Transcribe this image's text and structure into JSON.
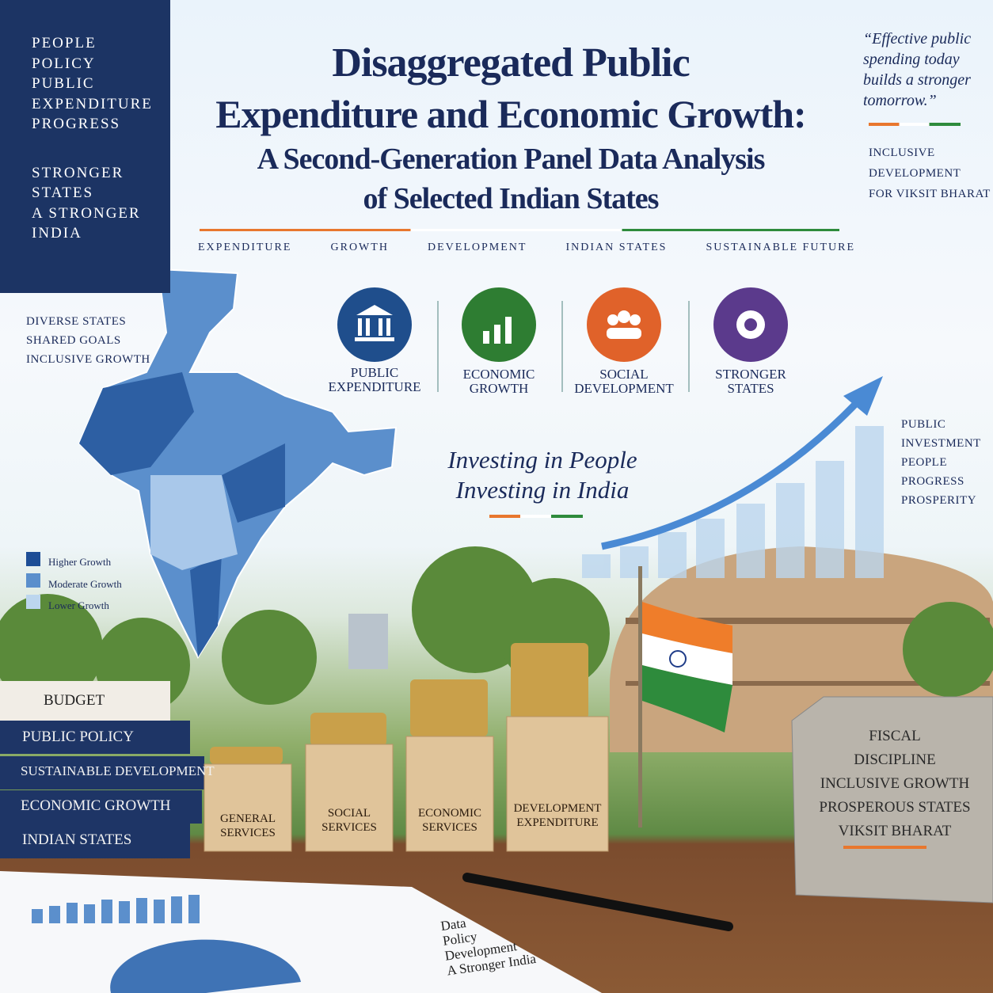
{
  "sidebar": {
    "top": [
      "PEOPLE",
      "POLICY",
      "PUBLIC",
      "EXPENDITURE",
      "PROGRESS"
    ],
    "bottom": [
      "STRONGER",
      "STATES",
      "A STRONGER",
      "INDIA"
    ]
  },
  "title": [
    "Disaggregated Public",
    "Expenditure and Economic Growth:",
    "A Second-Generation Panel Data Analysis",
    "of Selected Indian States"
  ],
  "keywords": [
    "EXPENDITURE",
    "GROWTH",
    "DEVELOPMENT",
    "INDIAN STATES",
    "SUSTAINABLE FUTURE"
  ],
  "quote": [
    "“Effective public",
    "spending today",
    "builds a stronger",
    "tomorrow.”"
  ],
  "quote_tags": [
    "INCLUSIVE",
    "DEVELOPMENT",
    "FOR VIKSIT BHARAT"
  ],
  "map_notes": [
    "DIVERSE STATES",
    "SHARED GOALS",
    "INCLUSIVE GROWTH"
  ],
  "legend": [
    "Higher Growth",
    "Moderate Growth",
    "Lower Growth"
  ],
  "icons": [
    [
      "PUBLIC",
      "EXPENDITURE"
    ],
    [
      "ECONOMIC",
      "GROWTH"
    ],
    [
      "SOCIAL",
      "DEVELOPMENT"
    ],
    [
      "STRONGER",
      "STATES"
    ]
  ],
  "tagline": [
    "Investing in People",
    "Investing in India"
  ],
  "right_notes": [
    "PUBLIC",
    "INVESTMENT",
    "PEOPLE",
    "PROGRESS",
    "PROSPERITY"
  ],
  "books": [
    "BUDGET",
    "PUBLIC POLICY",
    "SUSTAINABLE DEVELOPMENT",
    "ECONOMIC GROWTH",
    "INDIAN STATES"
  ],
  "blocks": [
    [
      "GENERAL",
      "SERVICES"
    ],
    [
      "SOCIAL",
      "SERVICES"
    ],
    [
      "ECONOMIC",
      "SERVICES"
    ],
    [
      "DEVELOPMENT",
      "EXPENDITURE"
    ]
  ],
  "stone": [
    "FISCAL",
    "DISCIPLINE",
    "INCLUSIVE GROWTH",
    "PROSPEROUS STATES",
    "VIKSIT BHARAT"
  ],
  "paper_notes": [
    "Data",
    "Policy",
    "Development",
    "A Stronger India"
  ]
}
